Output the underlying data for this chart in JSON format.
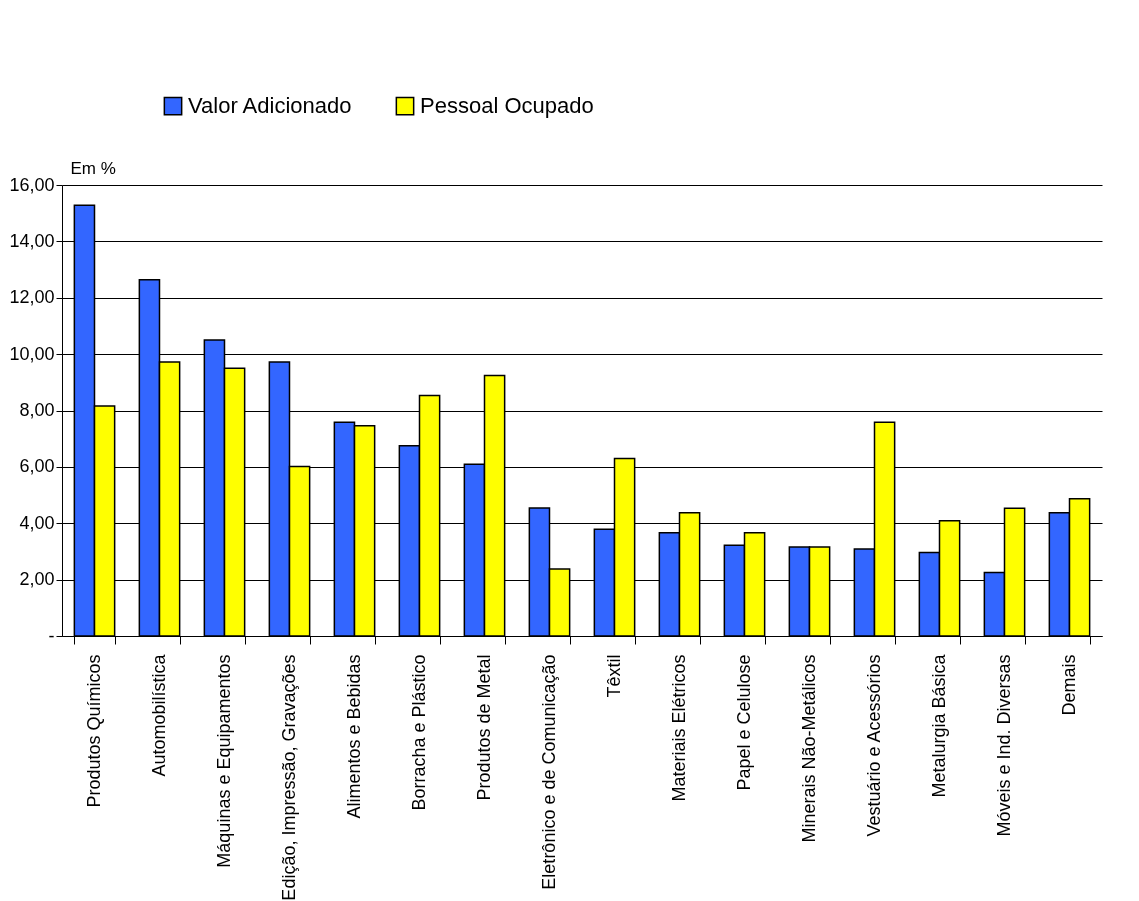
{
  "chart_data": {
    "type": "bar",
    "ylabel": "Em %",
    "categories": [
      "Produtos Químicos",
      "Automobilística",
      "Máquinas e Equipamentos",
      "Edição, Impressão, Gravações",
      "Alimentos e Bebidas",
      "Borracha e Plástico",
      "Produtos de Metal",
      "Eletrônico e de Comunicação",
      "Têxtil",
      "Materiais Elétricos",
      "Papel e Celulose",
      "Minerais Não-Metálicos",
      "Vestuário e Acessórios",
      "Metalurgia Básica",
      "Móveis e Ind. Diversas",
      "Demais"
    ],
    "series": [
      {
        "name": "Valor Adicionado",
        "color": "#3366ff",
        "values": [
          15.28,
          12.64,
          10.5,
          9.72,
          7.58,
          6.75,
          6.09,
          4.54,
          3.79,
          3.66,
          3.22,
          3.16,
          3.09,
          2.96,
          2.25,
          4.37
        ]
      },
      {
        "name": "Pessoal Ocupado",
        "color": "#ffff00",
        "values": [
          8.16,
          9.72,
          9.5,
          6.01,
          7.46,
          8.53,
          9.24,
          2.38,
          6.3,
          4.37,
          3.66,
          3.16,
          7.58,
          4.09,
          4.53,
          4.87
        ]
      }
    ],
    "ylim": [
      0,
      16
    ],
    "yticks": [
      {
        "value": 0,
        "label": "-"
      },
      {
        "value": 2,
        "label": "2,00"
      },
      {
        "value": 4,
        "label": "4,00"
      },
      {
        "value": 6,
        "label": "6,00"
      },
      {
        "value": 8,
        "label": "8,00"
      },
      {
        "value": 10,
        "label": "10,00"
      },
      {
        "value": 12,
        "label": "12,00"
      },
      {
        "value": 14,
        "label": "14,00"
      },
      {
        "value": 16,
        "label": "16,00"
      }
    ],
    "grid": "y",
    "legend": "top"
  }
}
